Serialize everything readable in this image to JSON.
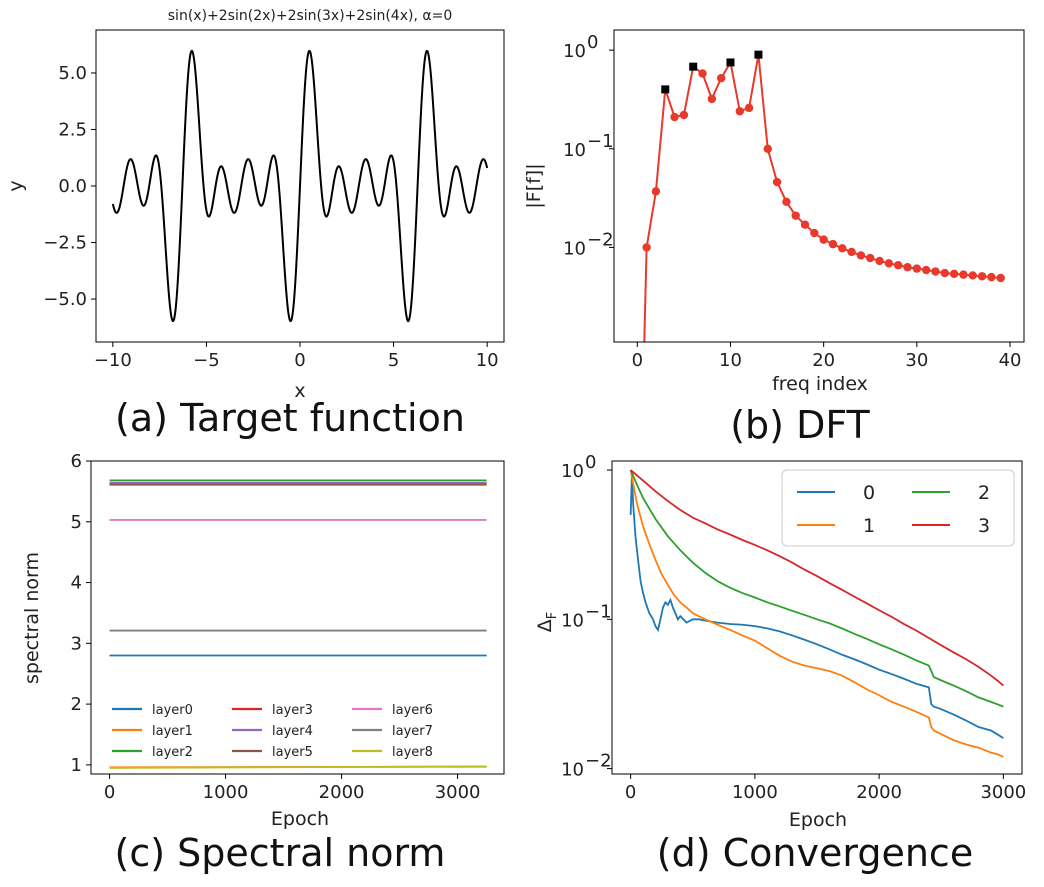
{
  "chart_data": [
    {
      "panel": "a",
      "type": "line",
      "title": "sin(x)+2sin(2x)+2sin(3x)+2sin(4x), α=0",
      "caption": "(a) Target function",
      "xlabel": "x",
      "ylabel": "y",
      "xlim": [
        -10.9,
        10.9
      ],
      "ylim": [
        -6.9,
        6.9
      ],
      "xticks": [
        -10,
        -5,
        0,
        5,
        10
      ],
      "xtick_labels": [
        "−10",
        "−5",
        "0",
        "5",
        "10"
      ],
      "yticks": [
        -5.0,
        -2.5,
        0.0,
        2.5,
        5.0
      ],
      "ytick_labels": [
        "−5.0",
        "−2.5",
        "0.0",
        "2.5",
        "5.0"
      ],
      "function": {
        "coef": [
          1,
          2,
          2,
          2
        ],
        "x_from": -10,
        "x_to": 10,
        "samples": 900
      },
      "color": "#000000"
    },
    {
      "panel": "b",
      "type": "line",
      "caption": "(b) DFT",
      "xlabel": "freq index",
      "ylabel": "|F[f]|",
      "xlim": [
        -2.5,
        41.5
      ],
      "ylim": [
        0.0011,
        1.6
      ],
      "yscale": "log",
      "xticks": [
        0,
        10,
        20,
        30,
        40
      ],
      "xtick_labels": [
        "0",
        "10",
        "20",
        "30",
        "40"
      ],
      "yticks": [
        0.01,
        0.1,
        1
      ],
      "ytick_labels": [
        "10",
        "10",
        "10"
      ],
      "ytick_exponents": [
        "−2",
        "−1",
        "0"
      ],
      "x": [
        0.75,
        1,
        2,
        3,
        4,
        5,
        6,
        7,
        8,
        9,
        10,
        11,
        12,
        13,
        14,
        15,
        16,
        17,
        18,
        19,
        20,
        21,
        22,
        23,
        24,
        25,
        26,
        27,
        28,
        29,
        30,
        31,
        32,
        33,
        34,
        35,
        36,
        37,
        38,
        39
      ],
      "values": [
        0.0011,
        0.01,
        0.037,
        0.4,
        0.21,
        0.22,
        0.68,
        0.58,
        0.32,
        0.52,
        0.75,
        0.24,
        0.26,
        0.9,
        0.1,
        0.046,
        0.029,
        0.021,
        0.017,
        0.014,
        0.012,
        0.0108,
        0.0098,
        0.009,
        0.0083,
        0.0078,
        0.0073,
        0.0069,
        0.0066,
        0.0063,
        0.0061,
        0.0059,
        0.0057,
        0.0055,
        0.0054,
        0.0053,
        0.0052,
        0.0051,
        0.005,
        0.0049
      ],
      "markers": [
        false,
        true,
        true,
        false,
        true,
        true,
        false,
        true,
        true,
        true,
        false,
        true,
        true,
        false,
        true,
        true,
        true,
        true,
        true,
        true,
        true,
        true,
        true,
        true,
        true,
        true,
        true,
        true,
        true,
        true,
        true,
        true,
        true,
        true,
        true,
        true,
        true,
        true,
        true,
        true
      ],
      "peaks_x": [
        3,
        6,
        10,
        13
      ],
      "peaks_values": [
        0.4,
        0.68,
        0.75,
        0.9
      ],
      "color": "#e8392b",
      "peak_color": "#000000"
    },
    {
      "panel": "c",
      "type": "line",
      "caption": "(c) Spectral norm",
      "xlabel": "Epoch",
      "ylabel": "spectral norm",
      "xlim": [
        -160,
        3400
      ],
      "ylim": [
        0.85,
        6.0
      ],
      "xticks": [
        0,
        1000,
        2000,
        3000
      ],
      "xtick_labels": [
        "0",
        "1000",
        "2000",
        "3000"
      ],
      "yticks": [
        1,
        2,
        3,
        4,
        5,
        6
      ],
      "ytick_labels": [
        "1",
        "2",
        "3",
        "4",
        "5",
        "6"
      ],
      "x_range": [
        0,
        3250
      ],
      "legend_position": "lower-left",
      "series": [
        {
          "name": "layer0",
          "start": 2.8,
          "end": 2.8,
          "color": "#1f77b4"
        },
        {
          "name": "layer1",
          "start": 0.96,
          "end": 0.97,
          "color": "#ff7f0e"
        },
        {
          "name": "layer2",
          "start": 5.68,
          "end": 5.68,
          "color": "#2ca02c"
        },
        {
          "name": "layer3",
          "start": 5.63,
          "end": 5.63,
          "color": "#d62728"
        },
        {
          "name": "layer4",
          "start": 5.64,
          "end": 5.64,
          "color": "#9467bd"
        },
        {
          "name": "layer5",
          "start": 5.61,
          "end": 5.61,
          "color": "#8c564b"
        },
        {
          "name": "layer6",
          "start": 5.03,
          "end": 5.03,
          "color": "#e377c2"
        },
        {
          "name": "layer7",
          "start": 3.21,
          "end": 3.21,
          "color": "#7f7f7f"
        },
        {
          "name": "layer8",
          "start": 0.95,
          "end": 0.975,
          "color": "#bcbd22"
        }
      ]
    },
    {
      "panel": "d",
      "type": "line",
      "caption": "(d) Convergence",
      "xlabel": "Epoch",
      "ylabel": "Δ",
      "ylabel_sub": "F",
      "xlim": [
        -150,
        3150
      ],
      "ylim": [
        0.0092,
        1.15
      ],
      "yscale": "log",
      "xticks": [
        0,
        1000,
        2000,
        3000
      ],
      "xtick_labels": [
        "0",
        "1000",
        "2000",
        "3000"
      ],
      "yticks": [
        0.01,
        0.1,
        1
      ],
      "ytick_labels": [
        "10",
        "10",
        "10"
      ],
      "ytick_exponents": [
        "−2",
        "−1",
        "0"
      ],
      "legend_position": "top-right",
      "series": [
        {
          "name": "0",
          "color": "#1f77b4",
          "x": [
            0,
            10,
            20,
            40,
            60,
            80,
            100,
            120,
            150,
            180,
            200,
            220,
            240,
            260,
            280,
            300,
            320,
            340,
            360,
            380,
            400,
            450,
            500,
            550,
            600,
            700,
            800,
            900,
            1000,
            1100,
            1200,
            1300,
            1400,
            1500,
            1600,
            1700,
            1800,
            1900,
            2000,
            2100,
            2200,
            2300,
            2400,
            2420,
            2440,
            2500,
            2600,
            2700,
            2800,
            2900,
            2950,
            3000
          ],
          "values": [
            0.5,
            0.9,
            0.6,
            0.35,
            0.25,
            0.18,
            0.15,
            0.13,
            0.11,
            0.1,
            0.09,
            0.085,
            0.1,
            0.12,
            0.13,
            0.125,
            0.135,
            0.12,
            0.11,
            0.1,
            0.105,
            0.095,
            0.1,
            0.1,
            0.098,
            0.095,
            0.093,
            0.092,
            0.09,
            0.087,
            0.083,
            0.078,
            0.073,
            0.068,
            0.063,
            0.058,
            0.054,
            0.05,
            0.046,
            0.043,
            0.04,
            0.037,
            0.035,
            0.027,
            0.026,
            0.025,
            0.023,
            0.021,
            0.019,
            0.018,
            0.017,
            0.016
          ]
        },
        {
          "name": "1",
          "color": "#ff7f0e",
          "x": [
            0,
            50,
            100,
            150,
            200,
            250,
            300,
            350,
            400,
            450,
            500,
            600,
            700,
            800,
            900,
            1000,
            1100,
            1200,
            1300,
            1400,
            1500,
            1600,
            1700,
            1800,
            1900,
            2000,
            2100,
            2200,
            2300,
            2400,
            2420,
            2440,
            2500,
            2600,
            2700,
            2800,
            2900,
            2950,
            3000
          ],
          "values": [
            1.0,
            0.6,
            0.42,
            0.32,
            0.25,
            0.2,
            0.17,
            0.145,
            0.13,
            0.12,
            0.11,
            0.1,
            0.092,
            0.085,
            0.078,
            0.072,
            0.064,
            0.057,
            0.052,
            0.049,
            0.047,
            0.045,
            0.042,
            0.038,
            0.034,
            0.031,
            0.028,
            0.026,
            0.024,
            0.022,
            0.019,
            0.018,
            0.017,
            0.0155,
            0.0145,
            0.0138,
            0.0128,
            0.0125,
            0.012
          ]
        },
        {
          "name": "2",
          "color": "#2ca02c",
          "x": [
            0,
            50,
            100,
            200,
            300,
            400,
            500,
            600,
            700,
            800,
            900,
            1000,
            1100,
            1200,
            1300,
            1400,
            1500,
            1600,
            1700,
            1800,
            1900,
            2000,
            2100,
            2200,
            2300,
            2400,
            2420,
            2440,
            2500,
            2600,
            2700,
            2800,
            2900,
            2950,
            3000
          ],
          "values": [
            1.0,
            0.8,
            0.65,
            0.47,
            0.36,
            0.29,
            0.24,
            0.205,
            0.18,
            0.163,
            0.15,
            0.14,
            0.13,
            0.122,
            0.114,
            0.107,
            0.1,
            0.094,
            0.087,
            0.08,
            0.074,
            0.068,
            0.063,
            0.058,
            0.053,
            0.049,
            0.045,
            0.041,
            0.039,
            0.036,
            0.033,
            0.03,
            0.028,
            0.027,
            0.026
          ]
        },
        {
          "name": "3",
          "color": "#d62728",
          "x": [
            0,
            100,
            200,
            300,
            400,
            500,
            600,
            700,
            800,
            900,
            1000,
            1100,
            1200,
            1300,
            1400,
            1500,
            1600,
            1700,
            1800,
            1900,
            2000,
            2100,
            2200,
            2300,
            2400,
            2500,
            2600,
            2700,
            2800,
            2900,
            2950,
            3000
          ],
          "values": [
            1.0,
            0.85,
            0.72,
            0.62,
            0.54,
            0.48,
            0.44,
            0.4,
            0.37,
            0.34,
            0.315,
            0.29,
            0.265,
            0.24,
            0.215,
            0.195,
            0.175,
            0.158,
            0.142,
            0.128,
            0.115,
            0.104,
            0.093,
            0.084,
            0.075,
            0.067,
            0.06,
            0.054,
            0.048,
            0.042,
            0.039,
            0.036
          ]
        }
      ]
    }
  ]
}
